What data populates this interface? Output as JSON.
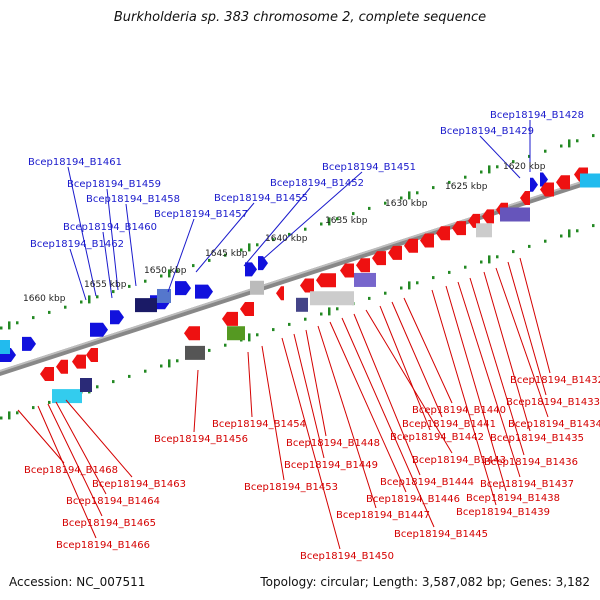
{
  "header": {
    "title": "Burkholderia sp. 383 chromosome 2, complete sequence"
  },
  "footer": {
    "accession": "Accession: NC_007511",
    "topology": "Topology: circular; Length: 3,587,082 bp; Genes: 3,182"
  },
  "scale_labels": [
    "1620 kbp",
    "1625 kbp",
    "1630 kbp",
    "1635 kbp",
    "1640 kbp",
    "1645 kbp",
    "1650 kbp",
    "1655 kbp",
    "1660 kbp"
  ],
  "top_gene_labels": [
    "Bcep18194_B1428",
    "Bcep18194_B1429",
    "Bcep18194_B1451",
    "Bcep18194_B1452",
    "Bcep18194_B1455",
    "Bcep18194_B1457",
    "Bcep18194_B1458",
    "Bcep18194_B1459",
    "Bcep18194_B1460",
    "Bcep18194_B1461",
    "Bcep18194_B1462"
  ],
  "bottom_gene_labels": [
    "Bcep18194_B1432",
    "Bcep18194_B1433",
    "Bcep18194_B1434",
    "Bcep18194_B1435",
    "Bcep18194_B1436",
    "Bcep18194_B1437",
    "Bcep18194_B1438",
    "Bcep18194_B1439",
    "Bcep18194_B1440",
    "Bcep18194_B1441",
    "Bcep18194_B1442",
    "Bcep18194_B1443",
    "Bcep18194_B1444",
    "Bcep18194_B1445",
    "Bcep18194_B1446",
    "Bcep18194_B1447",
    "Bcep18194_B1448",
    "Bcep18194_B1449",
    "Bcep18194_B1450",
    "Bcep18194_B1453",
    "Bcep18194_B1454",
    "Bcep18194_B1456",
    "Bcep18194_B1463",
    "Bcep18194_B1464",
    "Bcep18194_B1465",
    "Bcep18194_B1466",
    "Bcep18194_B1468"
  ],
  "colors": {
    "forward_gene": "#1111dd",
    "reverse_gene": "#ee1111",
    "backbone": "#888888",
    "tick": "#228822",
    "top_label": "#1a1acc",
    "bottom_label": "#d40000"
  }
}
